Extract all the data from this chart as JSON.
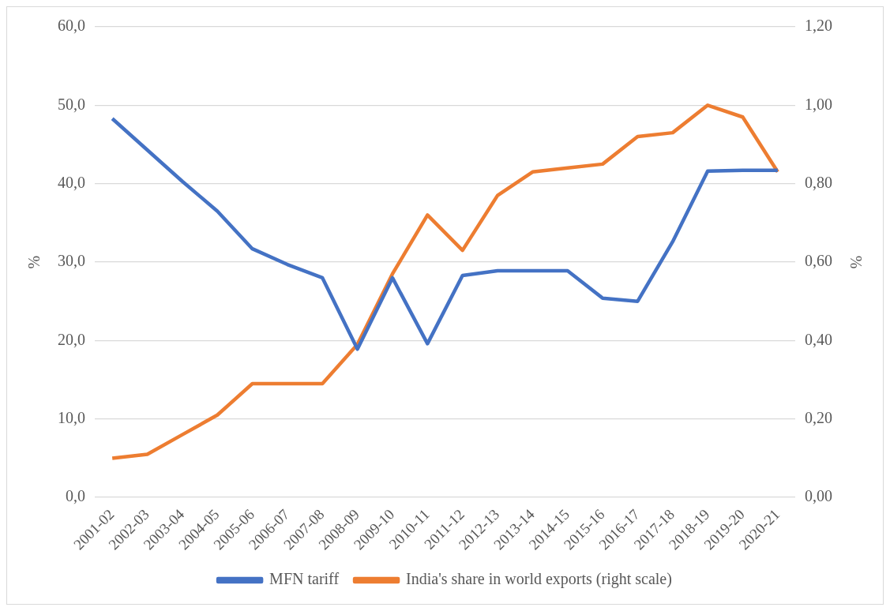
{
  "chart_data": {
    "type": "line",
    "ylabel": "%",
    "y2label": "%",
    "categories": [
      "2001-02",
      "2002-03",
      "2003-04",
      "2004-05",
      "2005-06",
      "2006-07",
      "2007-08",
      "2008-09",
      "2009-10",
      "2010-11",
      "2011-12",
      "2012-13",
      "2013-14",
      "2014-15",
      "2015-16",
      "2016-17",
      "2017-18",
      "2018-19",
      "2019-20",
      "2020-21"
    ],
    "series": [
      {
        "name": "MFN tariff",
        "color": "#4472c4",
        "values": [
          48.3,
          44.3,
          40.3,
          36.5,
          31.7,
          29.7,
          28.0,
          18.9,
          28.0,
          19.6,
          28.3,
          28.9,
          28.9,
          28.9,
          25.4,
          25.0,
          32.6,
          41.6,
          41.7,
          41.7
        ]
      },
      {
        "name": "India's share in world exports (right scale)",
        "color": "#ed7d31",
        "axis": "y2",
        "values": [
          0.1,
          0.11,
          0.16,
          0.21,
          0.29,
          0.29,
          0.29,
          0.39,
          0.57,
          0.72,
          0.63,
          0.77,
          0.83,
          0.84,
          0.85,
          0.92,
          0.93,
          1.0,
          0.97,
          0.83
        ]
      }
    ],
    "ylim": [
      0,
      60
    ],
    "yticks": [
      {
        "value": 0,
        "label": "0,0"
      },
      {
        "value": 10,
        "label": "10,0"
      },
      {
        "value": 20,
        "label": "20,0"
      },
      {
        "value": 30,
        "label": "30,0"
      },
      {
        "value": 40,
        "label": "40,0"
      },
      {
        "value": 50,
        "label": "50,0"
      },
      {
        "value": 60,
        "label": "60,0"
      }
    ],
    "y2lim": [
      0,
      1.2
    ],
    "y2ticks": [
      {
        "value": 0,
        "label": "0,00"
      },
      {
        "value": 0.2,
        "label": "0,20"
      },
      {
        "value": 0.4,
        "label": "0,40"
      },
      {
        "value": 0.6,
        "label": "0,60"
      },
      {
        "value": 0.8,
        "label": "0,80"
      },
      {
        "value": 1.0,
        "label": "1,00"
      },
      {
        "value": 1.2,
        "label": "1,20"
      }
    ],
    "grid": "y",
    "legend": "bottom",
    "marker": "none",
    "line_style": "solid"
  }
}
